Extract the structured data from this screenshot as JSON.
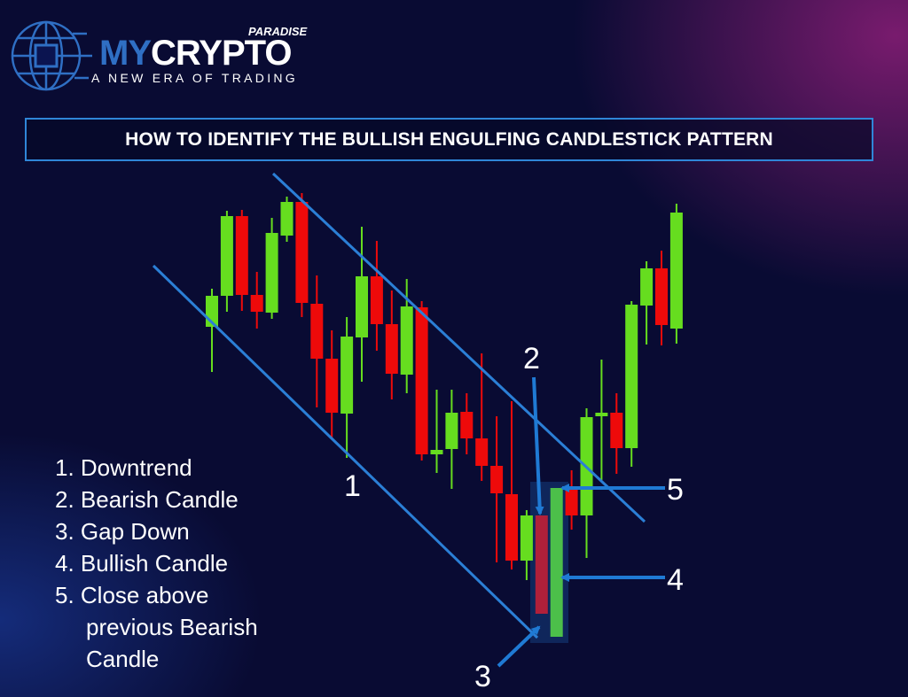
{
  "logo": {
    "brand_part1": "MY",
    "brand_part2": "CRYPTO",
    "superscript": "PARADISE",
    "tagline": "A NEW ERA OF TRADING",
    "icon": "globe-circuit-icon"
  },
  "title": "HOW TO IDENTIFY THE BULLISH ENGULFING CANDLESTICK PATTERN",
  "legend": {
    "items": [
      "1. Downtrend",
      "2. Bearish Candle",
      "3. Gap Down",
      "4. Bullish Candle",
      "5. Close above"
    ],
    "item5_cont1": "previous Bearish",
    "item5_cont2": "Candle"
  },
  "callouts": {
    "c1": "1",
    "c2": "2",
    "c3": "3",
    "c4": "4",
    "c5": "5"
  },
  "colors": {
    "bullish": "#66dd1f",
    "bearish": "#ee0a0a",
    "pattern_bullish": "#4cbf4a",
    "pattern_bearish": "#b0203a",
    "channel": "#2b7fd6",
    "background": "#090b33"
  },
  "chart_data": {
    "type": "candlestick",
    "candles": [
      {
        "o": 431,
        "h": 474,
        "l": 380,
        "c": 466
      },
      {
        "o": 466,
        "h": 562,
        "l": 448,
        "c": 556
      },
      {
        "o": 556,
        "h": 563,
        "l": 449,
        "c": 467
      },
      {
        "o": 467,
        "h": 493,
        "l": 429,
        "c": 448
      },
      {
        "o": 447,
        "h": 554,
        "l": 440,
        "c": 537
      },
      {
        "o": 534,
        "h": 578,
        "l": 527,
        "c": 572
      },
      {
        "o": 572,
        "h": 582,
        "l": 442,
        "c": 458
      },
      {
        "o": 457,
        "h": 489,
        "l": 340,
        "c": 395
      },
      {
        "o": 395,
        "h": 427,
        "l": 304,
        "c": 334
      },
      {
        "o": 333,
        "h": 442,
        "l": 283,
        "c": 420
      },
      {
        "o": 419,
        "h": 544,
        "l": 369,
        "c": 488
      },
      {
        "o": 488,
        "h": 528,
        "l": 404,
        "c": 434
      },
      {
        "o": 434,
        "h": 472,
        "l": 349,
        "c": 378
      },
      {
        "o": 377,
        "h": 485,
        "l": 356,
        "c": 454
      },
      {
        "o": 453,
        "h": 460,
        "l": 280,
        "c": 287
      },
      {
        "o": 287,
        "h": 360,
        "l": 266,
        "c": 292
      },
      {
        "o": 293,
        "h": 360,
        "l": 248,
        "c": 334
      },
      {
        "o": 335,
        "h": 356,
        "l": 287,
        "c": 305
      },
      {
        "o": 305,
        "h": 401,
        "l": 257,
        "c": 274
      },
      {
        "o": 274,
        "h": 330,
        "l": 165,
        "c": 243
      },
      {
        "o": 242,
        "h": 347,
        "l": 157,
        "c": 167
      },
      {
        "o": 167,
        "h": 224,
        "l": 145,
        "c": 218
      },
      {
        "o": 218,
        "h": 218,
        "l": 107,
        "c": 107,
        "pattern": "bearish"
      },
      {
        "o": 81,
        "h": 249,
        "l": 81,
        "c": 249,
        "pattern": "bullish"
      },
      {
        "o": 249,
        "h": 269,
        "l": 202,
        "c": 218
      },
      {
        "o": 218,
        "h": 339,
        "l": 170,
        "c": 329
      },
      {
        "o": 330,
        "h": 394,
        "l": 258,
        "c": 334
      },
      {
        "o": 334,
        "h": 356,
        "l": 265,
        "c": 294
      },
      {
        "o": 294,
        "h": 460,
        "l": 273,
        "c": 456
      },
      {
        "o": 455,
        "h": 505,
        "l": 411,
        "c": 497
      },
      {
        "o": 497,
        "h": 517,
        "l": 410,
        "c": 433
      },
      {
        "o": 429,
        "h": 570,
        "l": 412,
        "c": 560
      }
    ]
  }
}
